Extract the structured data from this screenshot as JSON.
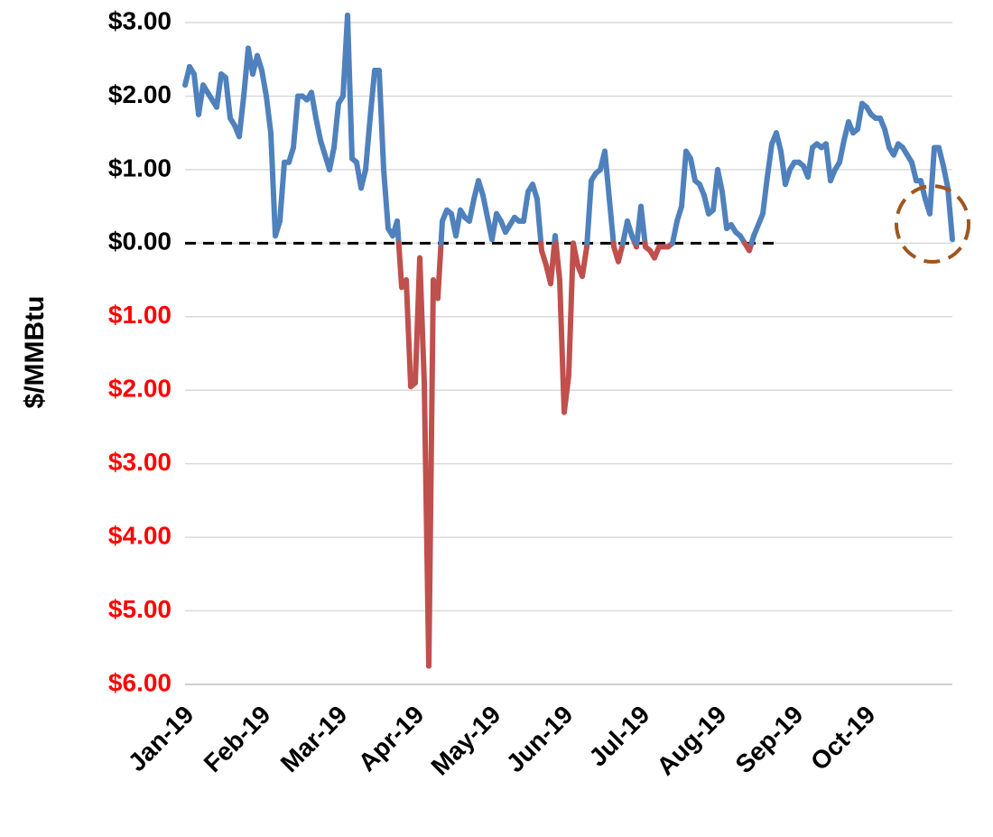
{
  "chart_data": {
    "type": "line",
    "y_label": "$/MMBtu",
    "categories": [
      "Jan-19",
      null,
      null,
      null,
      null,
      null,
      null,
      null,
      null,
      null,
      null,
      null,
      null,
      null,
      null,
      null,
      null,
      "Feb-19",
      null,
      null,
      null,
      null,
      null,
      null,
      null,
      null,
      null,
      null,
      null,
      null,
      null,
      null,
      null,
      null,
      "Mar-19",
      null,
      null,
      null,
      null,
      null,
      null,
      null,
      null,
      null,
      null,
      null,
      null,
      null,
      null,
      null,
      null,
      "Apr-19",
      null,
      null,
      null,
      null,
      null,
      null,
      null,
      null,
      null,
      null,
      null,
      null,
      null,
      null,
      null,
      null,
      "May-19",
      null,
      null,
      null,
      null,
      null,
      null,
      null,
      null,
      null,
      null,
      null,
      null,
      null,
      null,
      null,
      "Jun-19",
      null,
      null,
      null,
      null,
      null,
      null,
      null,
      null,
      null,
      null,
      null,
      null,
      null,
      null,
      null,
      null,
      "Jul-19",
      null,
      null,
      null,
      null,
      null,
      null,
      null,
      null,
      null,
      null,
      null,
      null,
      null,
      null,
      null,
      null,
      "Aug-19",
      null,
      null,
      null,
      null,
      null,
      null,
      null,
      null,
      null,
      null,
      null,
      null,
      null,
      null,
      null,
      null,
      "Sep-19",
      null,
      null,
      null,
      null,
      null,
      null,
      null,
      null,
      null,
      null,
      null,
      null,
      null,
      null,
      null,
      "Oct-19",
      null,
      null,
      null,
      null,
      null,
      null,
      null,
      null,
      null,
      null,
      null,
      null,
      null,
      null,
      null,
      null,
      null,
      null,
      null
    ],
    "series": [
      {
        "color": "#4f81bd",
        "negative_color": "#c0504d",
        "values": [
          2.15,
          2.4,
          2.3,
          1.75,
          2.15,
          2.05,
          1.95,
          1.85,
          2.3,
          2.25,
          1.7,
          1.6,
          1.45,
          2.0,
          2.65,
          2.3,
          2.55,
          2.35,
          2.0,
          1.5,
          0.1,
          0.3,
          1.1,
          1.1,
          1.3,
          2.0,
          2.0,
          1.95,
          2.05,
          1.7,
          1.4,
          1.2,
          1.0,
          1.3,
          1.9,
          2.0,
          3.1,
          1.15,
          1.1,
          0.75,
          1.0,
          1.7,
          2.35,
          2.35,
          1.0,
          0.2,
          0.1,
          0.3,
          -0.6,
          -0.5,
          -1.95,
          -1.9,
          -0.2,
          -1.9,
          -5.75,
          -0.5,
          -0.75,
          0.3,
          0.45,
          0.4,
          0.1,
          0.45,
          0.35,
          0.3,
          0.6,
          0.85,
          0.65,
          0.35,
          0.05,
          0.4,
          0.3,
          0.15,
          0.25,
          0.35,
          0.3,
          0.3,
          0.7,
          0.8,
          0.6,
          -0.1,
          -0.3,
          -0.55,
          0.1,
          -0.5,
          -2.3,
          -1.8,
          0.0,
          -0.3,
          -0.45,
          -0.05,
          0.85,
          0.95,
          1.0,
          1.25,
          0.6,
          -0.05,
          -0.25,
          0.0,
          0.3,
          0.1,
          -0.05,
          0.5,
          -0.05,
          -0.1,
          -0.2,
          -0.05,
          -0.05,
          -0.05,
          0.0,
          0.3,
          0.5,
          1.25,
          1.15,
          0.85,
          0.8,
          0.65,
          0.4,
          0.45,
          1.0,
          0.7,
          0.2,
          0.25,
          0.15,
          0.1,
          0.0,
          -0.1,
          0.1,
          0.25,
          0.4,
          0.9,
          1.35,
          1.5,
          1.25,
          0.8,
          1.0,
          1.1,
          1.1,
          1.05,
          0.9,
          1.3,
          1.35,
          1.3,
          1.35,
          0.85,
          1.0,
          1.1,
          1.4,
          1.65,
          1.5,
          1.55,
          1.9,
          1.85,
          1.75,
          1.7,
          1.7,
          1.55,
          1.3,
          1.2,
          1.35,
          1.3,
          1.2,
          1.1,
          0.85,
          0.85,
          0.6,
          0.4,
          1.3,
          1.3,
          1.05,
          0.75,
          0.05
        ]
      }
    ],
    "ylim": [
      -6,
      3
    ],
    "yticks": [
      {
        "value": -6,
        "label": "$6.00"
      },
      {
        "value": -5,
        "label": "$5.00"
      },
      {
        "value": -4,
        "label": "$4.00"
      },
      {
        "value": -3,
        "label": "$3.00"
      },
      {
        "value": -2,
        "label": "$2.00"
      },
      {
        "value": -1,
        "label": "$1.00"
      },
      {
        "value": 0,
        "label": "$0.00"
      },
      {
        "value": 1,
        "label": "$1.00"
      },
      {
        "value": 2,
        "label": "$2.00"
      },
      {
        "value": 3,
        "label": "$3.00"
      }
    ],
    "negative_label_color": "#ff0000",
    "grid": true,
    "reference_line": {
      "value": 0,
      "dashed": true
    }
  }
}
